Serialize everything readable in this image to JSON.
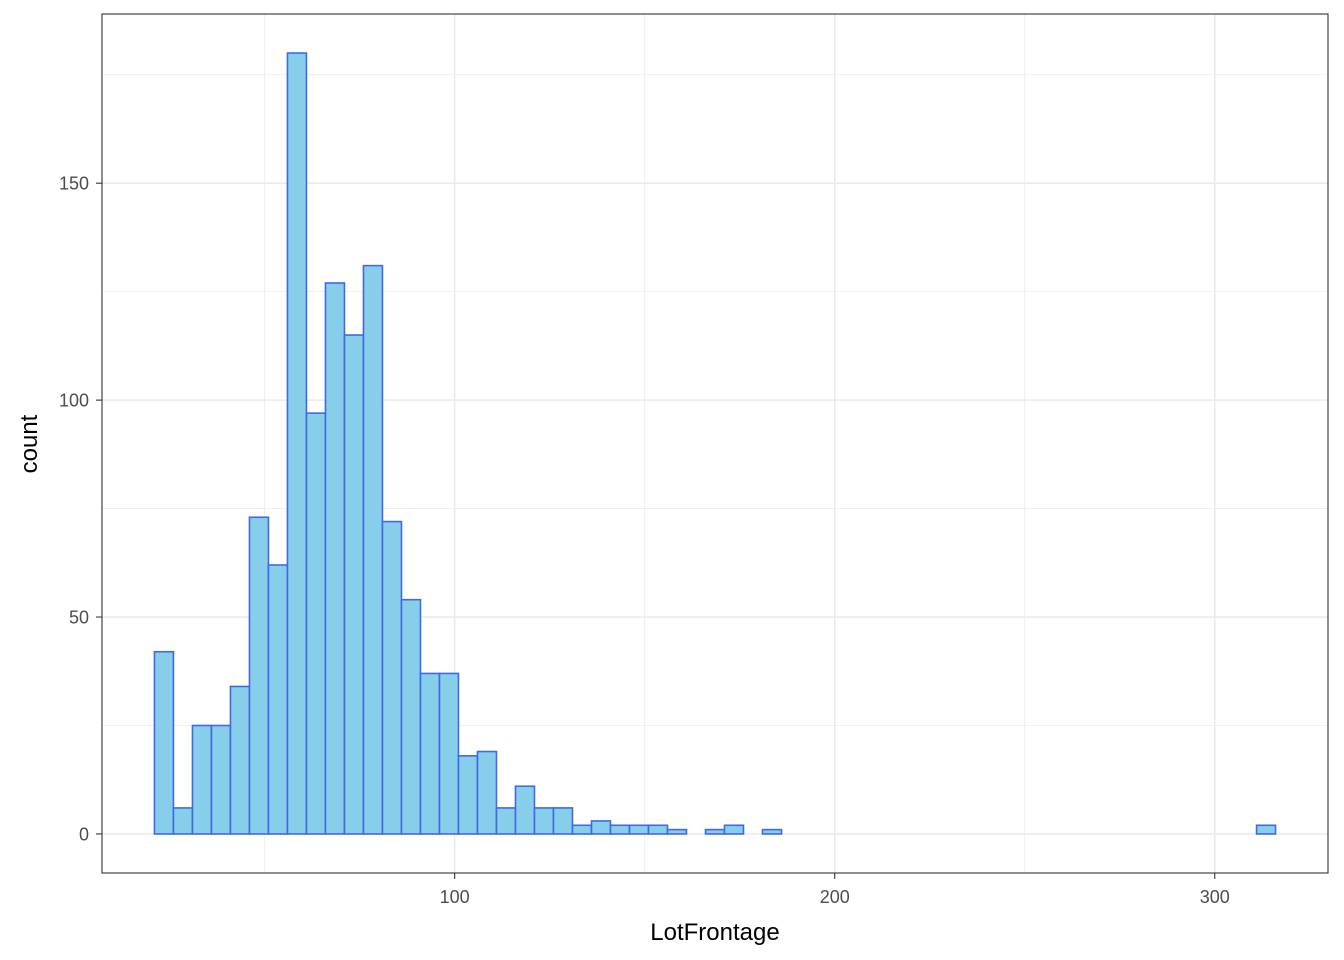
{
  "chart_data": {
    "type": "bar",
    "subtype": "histogram",
    "title": "",
    "xlabel": "LotFrontage",
    "ylabel": "count",
    "bin_width": 5,
    "bins_start": [
      21,
      26,
      31,
      36,
      41,
      46,
      51,
      56,
      61,
      66,
      71,
      76,
      81,
      86,
      91,
      96,
      101,
      106,
      111,
      116,
      121,
      126,
      131,
      136,
      141,
      146,
      151,
      156,
      161,
      166,
      171,
      176,
      181,
      186,
      191,
      196,
      201,
      206,
      211,
      216,
      221,
      226,
      231,
      236,
      241,
      246,
      251,
      256,
      261,
      266,
      271,
      276,
      281,
      286,
      291,
      296,
      301,
      306,
      311
    ],
    "values": [
      42,
      6,
      25,
      25,
      34,
      73,
      62,
      180,
      97,
      127,
      115,
      131,
      72,
      54,
      37,
      37,
      18,
      19,
      6,
      11,
      6,
      6,
      2,
      3,
      2,
      2,
      2,
      1,
      0,
      1,
      2,
      0,
      1,
      0,
      0,
      0,
      0,
      0,
      0,
      0,
      0,
      0,
      0,
      0,
      0,
      0,
      0,
      0,
      0,
      0,
      0,
      0,
      0,
      0,
      0,
      0,
      0,
      0,
      2
    ],
    "xlim": [
      7.2,
      329.8
    ],
    "ylim": [
      -9,
      189
    ],
    "x_ticks": [
      100,
      200,
      300
    ],
    "x_tick_labels": [
      "100",
      "200",
      "300"
    ],
    "y_ticks": [
      0,
      50,
      100,
      150
    ],
    "y_tick_labels": [
      "0",
      "50",
      "100",
      "150"
    ],
    "grid": true,
    "colors": {
      "fill": "#87CEEB",
      "outline": "#4169E1",
      "grid": "#ebebeb",
      "border": "#333333"
    }
  }
}
